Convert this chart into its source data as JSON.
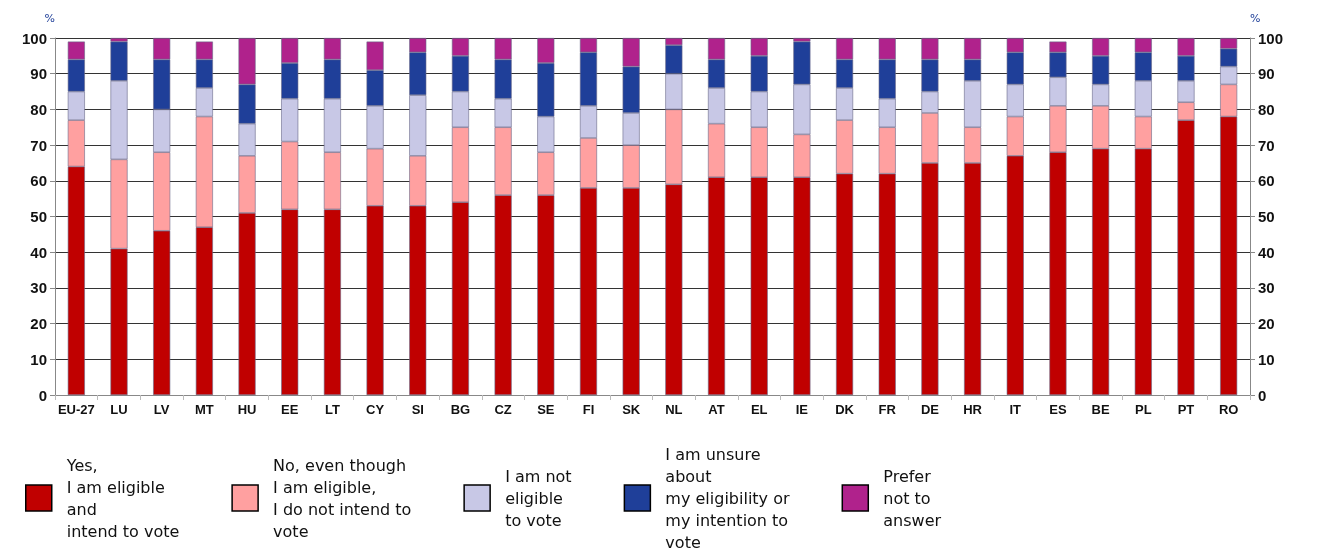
{
  "chart_data": {
    "type": "bar",
    "stacked": true,
    "ylabel": "%",
    "y2label": "%",
    "categories": [
      "EU-27",
      "LU",
      "LV",
      "MT",
      "HU",
      "EE",
      "LT",
      "CY",
      "SI",
      "BG",
      "CZ",
      "SE",
      "FI",
      "SK",
      "NL",
      "AT",
      "EL",
      "IE",
      "DK",
      "FR",
      "DE",
      "HR",
      "IT",
      "ES",
      "BE",
      "PL",
      "PT",
      "RO"
    ],
    "series": [
      {
        "name": "Yes,\nI am eligible\nand\nintend to vote",
        "color": "#c00000",
        "values": [
          64,
          41,
          46,
          47,
          51,
          52,
          52,
          53,
          53,
          54,
          56,
          56,
          58,
          58,
          59,
          61,
          61,
          61,
          62,
          62,
          65,
          65,
          67,
          68,
          69,
          69,
          77,
          78
        ]
      },
      {
        "name": "No, even though\nI am eligible,\nI do not intend to\nvote",
        "color": "#ffa0a0",
        "values": [
          13,
          25,
          22,
          31,
          16,
          19,
          16,
          16,
          14,
          21,
          19,
          12,
          14,
          12,
          21,
          15,
          14,
          12,
          15,
          13,
          14,
          10,
          11,
          13,
          12,
          9,
          5,
          9
        ]
      },
      {
        "name": "I am not\neligible\nto vote",
        "color": "#c8c8e6",
        "values": [
          8,
          22,
          12,
          8,
          9,
          12,
          15,
          12,
          17,
          10,
          8,
          10,
          9,
          9,
          10,
          10,
          10,
          14,
          9,
          8,
          6,
          13,
          9,
          8,
          6,
          10,
          6,
          5
        ]
      },
      {
        "name": "I am unsure\nabout\nmy eligibility or\nmy intention to\nvote",
        "color": "#1f3f99",
        "values": [
          9,
          11,
          14,
          8,
          11,
          10,
          11,
          10,
          12,
          10,
          11,
          15,
          15,
          13,
          8,
          8,
          10,
          12,
          8,
          11,
          9,
          6,
          9,
          7,
          8,
          8,
          7,
          5
        ]
      },
      {
        "name": "Prefer\nnot to\nanswer",
        "color": "#b0228c",
        "values": [
          5,
          1,
          6,
          5,
          13,
          7,
          6,
          8,
          4,
          5,
          6,
          7,
          4,
          8,
          2,
          6,
          5,
          1,
          6,
          6,
          6,
          6,
          4,
          3,
          5,
          4,
          5,
          3
        ]
      }
    ],
    "ylim": [
      0,
      100
    ],
    "yticks": [
      0,
      10,
      20,
      30,
      40,
      50,
      60,
      70,
      80,
      90,
      100
    ],
    "y2lim": [
      0,
      100
    ],
    "y2ticks": [
      0,
      10,
      20,
      30,
      40,
      50,
      60,
      70,
      80,
      90,
      100
    ],
    "grid": "y",
    "legend": "bottom"
  }
}
